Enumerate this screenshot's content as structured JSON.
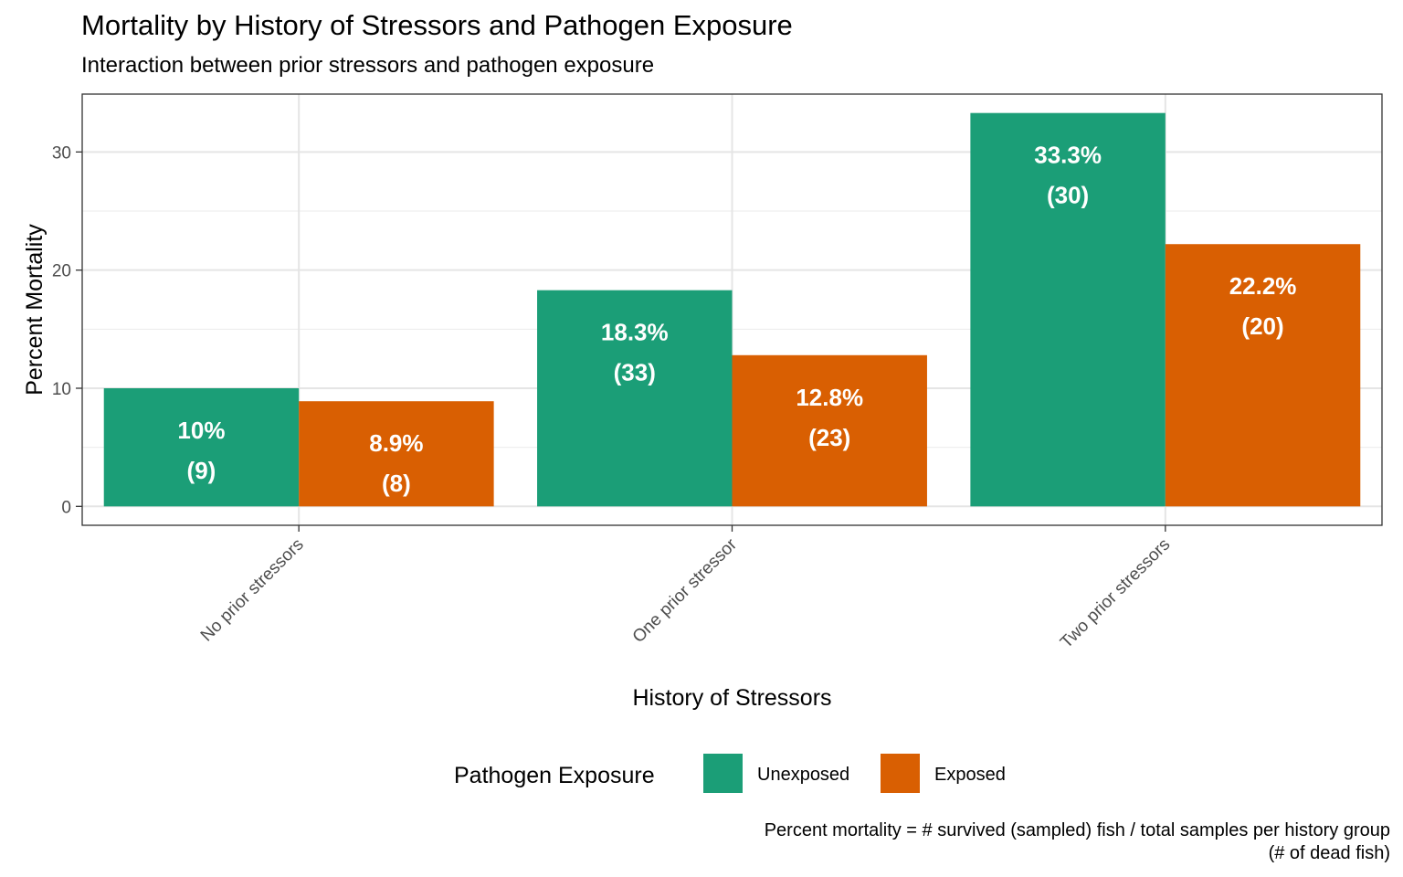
{
  "chart_data": {
    "type": "bar",
    "title": "Mortality by History of Stressors and Pathogen Exposure",
    "subtitle": "Interaction between prior stressors and pathogen exposure",
    "xlabel": "History of Stressors",
    "ylabel": "Percent Mortality",
    "categories": [
      "No prior stressors",
      "One prior stressor",
      "Two prior stressors"
    ],
    "ylim": [
      -1.6,
      34.9
    ],
    "yticks": [
      0,
      10,
      20,
      30
    ],
    "grid": true,
    "legend": {
      "title": "Pathogen Exposure",
      "position": "bottom"
    },
    "series": [
      {
        "name": "Unexposed",
        "color": "#1B9E77",
        "values": [
          10,
          18.3,
          33.3
        ],
        "labels": [
          "10%",
          "18.3%",
          "33.3%"
        ],
        "counts": [
          "(9)",
          "(33)",
          "(30)"
        ]
      },
      {
        "name": "Exposed",
        "color": "#D95F02",
        "values": [
          8.9,
          12.8,
          22.2
        ],
        "labels": [
          "8.9%",
          "12.8%",
          "22.2%"
        ],
        "counts": [
          "(8)",
          "(23)",
          "(20)"
        ]
      }
    ],
    "caption": [
      "Percent mortality = # survived (sampled) fish / total samples per history group",
      "(# of dead fish)"
    ]
  }
}
